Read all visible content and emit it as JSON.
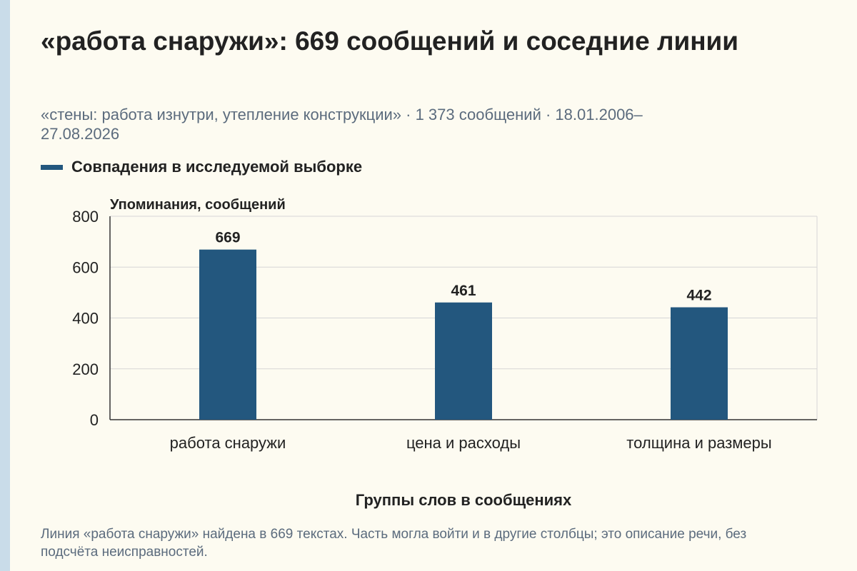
{
  "title": "«работа снаружи»: 669 сообщений и соседние линии",
  "subtitle": "«стены: работа изнутри, утепление конструкции» · 1 373 сообщений · 18.01.2006–27.08.2026",
  "caption": "Линия «работа снаружи» найдена в 669 текстах. Часть могла войти и в другие столбцы; это описание речи, без подсчёта неисправностей.",
  "colors": {
    "bar": "#23577e",
    "grid": "#d6d6d6",
    "axis": "#333333",
    "text": "#222222",
    "muted": "#5b6b7d",
    "side_strip": "#c9dce9",
    "background": "#fdfbf1"
  },
  "chart_data": {
    "type": "bar",
    "categories": [
      "работа снаружи",
      "цена и расходы",
      "толщина и размеры"
    ],
    "series": [
      {
        "name": "Совпадения в исследуемой выборке",
        "values": [
          669,
          461,
          442
        ]
      }
    ],
    "data_labels": [
      "669",
      "461",
      "442"
    ],
    "ylabel": "Упоминания, сообщений",
    "xlabel": "Группы слов в сообщениях",
    "ylim": [
      0,
      800
    ],
    "yticks": [
      0,
      200,
      400,
      600,
      800
    ],
    "ytick_labels": [
      "0",
      "200",
      "400",
      "600",
      "800"
    ],
    "grid": true,
    "legend_position": "top-left"
  }
}
